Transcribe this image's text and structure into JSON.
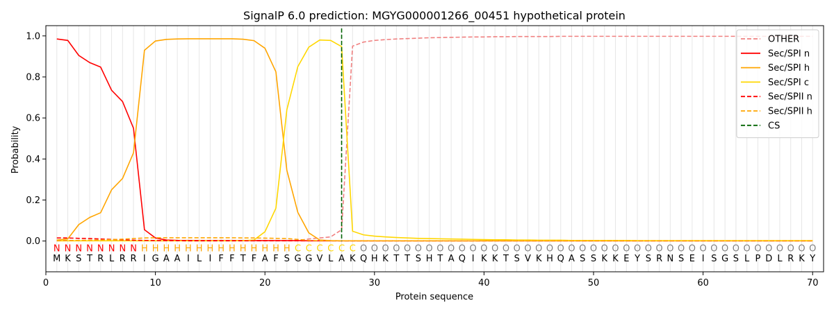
{
  "chart_data": {
    "type": "line",
    "title": "SignalP 6.0 prediction: MGYG000001266_00451 hypothetical protein",
    "xlabel": "Protein sequence",
    "ylabel": "Probability",
    "xlim": [
      0,
      71
    ],
    "ylim": [
      -0.15,
      1.05
    ],
    "x_ticks": [
      0,
      10,
      20,
      30,
      40,
      50,
      60,
      70
    ],
    "y_ticks": [
      0.0,
      0.2,
      0.4,
      0.6,
      0.8,
      1.0
    ],
    "x_tick_labels": [
      "0",
      "10",
      "20",
      "30",
      "40",
      "50",
      "60",
      "70"
    ],
    "y_tick_labels": [
      "0.0",
      "0.2",
      "0.4",
      "0.6",
      "0.8",
      "1.0"
    ],
    "grid": "vertical lines at each residue",
    "legend_position": "top-right",
    "sequence": "MKSTRLRRIGAAILIFFTFAFSGGVLAKQHKTTSHTAQIKKTSVKHQASSKKEYSRNSEISGSLPDLRKY",
    "labels": "NNNNNNNNHHHHHHHHHHHHHHCCCCCCOOOOOOOOOOOOOOOOOOOOOOOOOOOOOOOOOOOOOOOOOOOO",
    "label_colors": {
      "N": "#ff0000",
      "H": "#ffa500",
      "C": "#ffd700",
      "O": "#808080"
    },
    "cleavage_site": 27,
    "series": [
      {
        "name": "OTHER",
        "color": "#f08080",
        "dash": true,
        "values": [
          0.003,
          0.003,
          0.003,
          0.003,
          0.003,
          0.003,
          0.003,
          0.003,
          0.003,
          0.003,
          0.003,
          0.003,
          0.003,
          0.003,
          0.003,
          0.003,
          0.003,
          0.003,
          0.003,
          0.003,
          0.003,
          0.003,
          0.003,
          0.01,
          0.015,
          0.02,
          0.055,
          0.95,
          0.97,
          0.978,
          0.982,
          0.985,
          0.987,
          0.989,
          0.991,
          0.992,
          0.993,
          0.994,
          0.995,
          0.995,
          0.996,
          0.996,
          0.997,
          0.997,
          0.997,
          0.997,
          0.998,
          0.998,
          0.998,
          0.998,
          0.998,
          0.998,
          0.998,
          0.998,
          0.998,
          0.998,
          0.998,
          0.998,
          0.998,
          0.998,
          0.998,
          0.998,
          0.998,
          0.998,
          0.998,
          0.998,
          0.998,
          0.998,
          0.998,
          0.998
        ]
      },
      {
        "name": "Sec/SPI n",
        "color": "#ff0000",
        "dash": false,
        "values": [
          0.985,
          0.978,
          0.905,
          0.87,
          0.848,
          0.735,
          0.68,
          0.55,
          0.055,
          0.015,
          0.005,
          0.003,
          0.003,
          0.002,
          0.002,
          0.002,
          0.002,
          0.002,
          0.002,
          0.002,
          0.002,
          0.002,
          0.002,
          0.001,
          0.001,
          0.001,
          0.001,
          0.001,
          0.001,
          0.001,
          0.001,
          0.001,
          0.001,
          0.001,
          0.001,
          0.001,
          0.001,
          0.001,
          0.001,
          0.001,
          0.001,
          0.001,
          0.001,
          0.001,
          0.001,
          0.001,
          0.001,
          0.001,
          0.001,
          0.001,
          0.001,
          0.001,
          0.001,
          0.001,
          0.001,
          0.001,
          0.001,
          0.001,
          0.001,
          0.001,
          0.001,
          0.001,
          0.001,
          0.001,
          0.001,
          0.001,
          0.001,
          0.001,
          0.001,
          0.001
        ]
      },
      {
        "name": "Sec/SPI h",
        "color": "#ffa500",
        "dash": false,
        "values": [
          0.005,
          0.01,
          0.08,
          0.115,
          0.138,
          0.25,
          0.305,
          0.43,
          0.93,
          0.975,
          0.983,
          0.985,
          0.986,
          0.986,
          0.986,
          0.986,
          0.986,
          0.984,
          0.977,
          0.94,
          0.825,
          0.345,
          0.14,
          0.04,
          0.005,
          0.002,
          0.001,
          0.001,
          0.001,
          0.001,
          0.001,
          0.001,
          0.001,
          0.001,
          0.001,
          0.001,
          0.001,
          0.001,
          0.001,
          0.001,
          0.001,
          0.001,
          0.001,
          0.001,
          0.001,
          0.001,
          0.001,
          0.001,
          0.001,
          0.001,
          0.001,
          0.001,
          0.001,
          0.001,
          0.001,
          0.001,
          0.001,
          0.001,
          0.001,
          0.001,
          0.001,
          0.001,
          0.001,
          0.001,
          0.001,
          0.001,
          0.001,
          0.001,
          0.001,
          0.001
        ]
      },
      {
        "name": "Sec/SPI c",
        "color": "#ffd700",
        "dash": false,
        "values": [
          0.001,
          0.001,
          0.001,
          0.001,
          0.001,
          0.001,
          0.001,
          0.001,
          0.001,
          0.001,
          0.001,
          0.001,
          0.001,
          0.001,
          0.001,
          0.001,
          0.001,
          0.002,
          0.005,
          0.045,
          0.16,
          0.64,
          0.85,
          0.945,
          0.98,
          0.978,
          0.948,
          0.048,
          0.03,
          0.024,
          0.02,
          0.017,
          0.015,
          0.013,
          0.012,
          0.011,
          0.01,
          0.009,
          0.008,
          0.007,
          0.006,
          0.006,
          0.005,
          0.005,
          0.004,
          0.004,
          0.004,
          0.003,
          0.003,
          0.003,
          0.003,
          0.003,
          0.003,
          0.002,
          0.002,
          0.002,
          0.002,
          0.002,
          0.002,
          0.002,
          0.002,
          0.002,
          0.002,
          0.002,
          0.002,
          0.002,
          0.002,
          0.002,
          0.002,
          0.002
        ]
      },
      {
        "name": "Sec/SPII n",
        "color": "#ff0000",
        "dash": true,
        "values": [
          0.015,
          0.015,
          0.013,
          0.012,
          0.01,
          0.008,
          0.006,
          0.004,
          0.003,
          0.002,
          0.002,
          0.002,
          0.001,
          0.001,
          0.001,
          0.001,
          0.001,
          0.001,
          0.001,
          0.001,
          0.001,
          0.001,
          0.001,
          0.001,
          0.001,
          0.001,
          0.001,
          0.001,
          0.001,
          0.001,
          0.001,
          0.001,
          0.001,
          0.001,
          0.001,
          0.001,
          0.001,
          0.001,
          0.001,
          0.001,
          0.001,
          0.001,
          0.001,
          0.001,
          0.001,
          0.001,
          0.001,
          0.001,
          0.001,
          0.001,
          0.001,
          0.001,
          0.001,
          0.001,
          0.001,
          0.001,
          0.001,
          0.001,
          0.001,
          0.001,
          0.001,
          0.001,
          0.001,
          0.001,
          0.001,
          0.001,
          0.001,
          0.001,
          0.001,
          0.001
        ]
      },
      {
        "name": "Sec/SPII h",
        "color": "#ffa500",
        "dash": true,
        "values": [
          0.001,
          0.002,
          0.003,
          0.004,
          0.005,
          0.007,
          0.009,
          0.012,
          0.015,
          0.016,
          0.016,
          0.016,
          0.016,
          0.016,
          0.016,
          0.016,
          0.016,
          0.015,
          0.015,
          0.014,
          0.013,
          0.012,
          0.008,
          0.003,
          0.001,
          0.001,
          0.001,
          0.001,
          0.001,
          0.001,
          0.001,
          0.001,
          0.001,
          0.001,
          0.001,
          0.001,
          0.001,
          0.001,
          0.001,
          0.001,
          0.001,
          0.001,
          0.001,
          0.001,
          0.001,
          0.001,
          0.001,
          0.001,
          0.001,
          0.001,
          0.001,
          0.001,
          0.001,
          0.001,
          0.001,
          0.001,
          0.001,
          0.001,
          0.001,
          0.001,
          0.001,
          0.001,
          0.001,
          0.001,
          0.001,
          0.001,
          0.001,
          0.001,
          0.001,
          0.001
        ]
      }
    ],
    "cs_legend": {
      "name": "CS",
      "color": "#006400"
    }
  }
}
